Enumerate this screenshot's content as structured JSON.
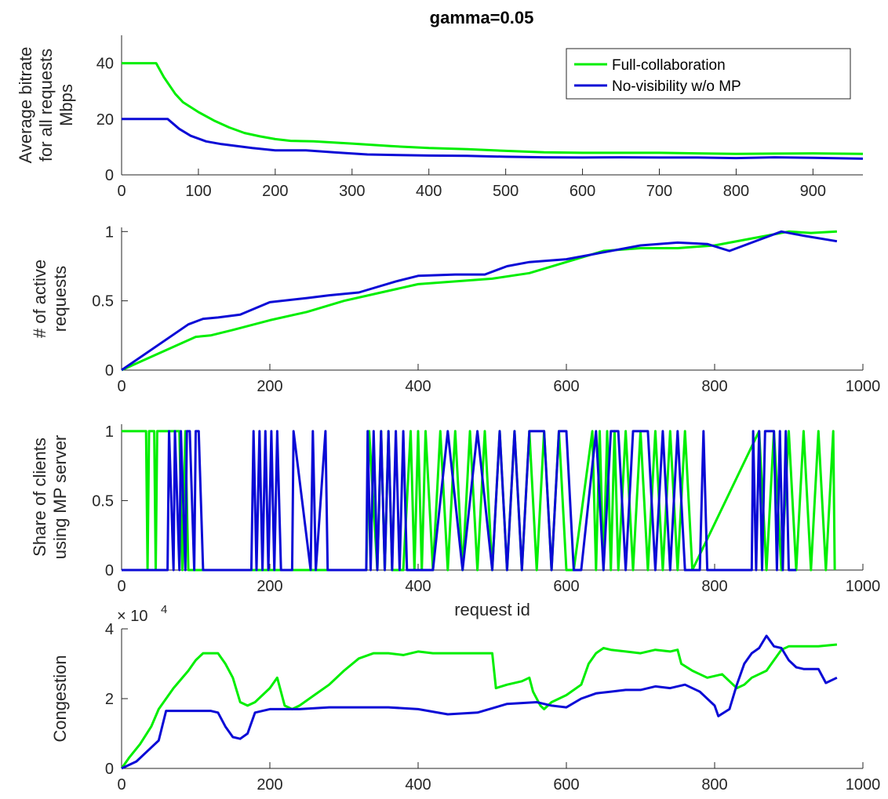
{
  "title": "gamma=0.05",
  "colors": {
    "full": "#00ee00",
    "novis": "#0a0ad6"
  },
  "chart_data": [
    {
      "type": "line",
      "ylabel": [
        "Average bitrate",
        "for all requests",
        "Mbps"
      ],
      "xlabel": "",
      "xlim": [
        0,
        965
      ],
      "ylim": [
        0,
        50
      ],
      "xticks": [
        0,
        100,
        200,
        300,
        400,
        500,
        600,
        700,
        800,
        900
      ],
      "yticks": [
        0,
        20,
        40
      ],
      "legend": {
        "placement": "top-right",
        "entries": [
          "Full-collaboration",
          "No-visibility w/o MP"
        ]
      },
      "series": [
        {
          "name": "Full-collaboration",
          "color": "#00ee00",
          "x": [
            0,
            45,
            55,
            70,
            80,
            100,
            120,
            140,
            160,
            180,
            200,
            220,
            250,
            300,
            350,
            400,
            450,
            500,
            550,
            600,
            650,
            700,
            750,
            800,
            850,
            900,
            965
          ],
          "y": [
            40,
            40,
            35,
            29,
            26,
            22.5,
            19.5,
            17,
            15,
            13.8,
            12.8,
            12.2,
            12,
            11.2,
            10.3,
            9.6,
            9.2,
            8.6,
            8.1,
            7.9,
            7.9,
            7.9,
            7.7,
            7.5,
            7.6,
            7.7,
            7.5
          ]
        },
        {
          "name": "No-visibility w/o MP",
          "color": "#0a0ad6",
          "x": [
            0,
            60,
            75,
            90,
            110,
            130,
            150,
            170,
            200,
            240,
            280,
            320,
            360,
            400,
            450,
            500,
            550,
            600,
            650,
            700,
            750,
            800,
            850,
            900,
            965
          ],
          "y": [
            20,
            20,
            16.5,
            14,
            12,
            11,
            10.3,
            9.6,
            8.8,
            8.8,
            8,
            7.3,
            7.1,
            6.9,
            6.8,
            6.5,
            6.3,
            6.2,
            6.3,
            6.2,
            6.2,
            6,
            6.3,
            6.1,
            5.8
          ]
        }
      ]
    },
    {
      "type": "line",
      "ylabel": [
        "# of active",
        "requests"
      ],
      "xlabel": "",
      "xlim": [
        0,
        1000
      ],
      "ylim": [
        0,
        1.03
      ],
      "xticks": [
        0,
        200,
        400,
        600,
        800,
        1000
      ],
      "yticks": [
        0,
        0.5,
        1
      ],
      "series": [
        {
          "name": "Full-collaboration",
          "color": "#00ee00",
          "x": [
            0,
            50,
            100,
            120,
            150,
            200,
            250,
            300,
            350,
            400,
            450,
            500,
            550,
            600,
            650,
            700,
            750,
            800,
            850,
            900,
            930,
            965
          ],
          "y": [
            0,
            0.12,
            0.24,
            0.25,
            0.29,
            0.36,
            0.42,
            0.5,
            0.56,
            0.62,
            0.64,
            0.66,
            0.7,
            0.78,
            0.86,
            0.88,
            0.88,
            0.9,
            0.95,
            1.0,
            0.99,
            1.0
          ]
        },
        {
          "name": "No-visibility w/o MP",
          "color": "#0a0ad6",
          "x": [
            0,
            90,
            110,
            130,
            160,
            200,
            250,
            280,
            320,
            370,
            400,
            450,
            490,
            520,
            550,
            600,
            650,
            700,
            750,
            790,
            820,
            860,
            890,
            920,
            965
          ],
          "y": [
            0,
            0.33,
            0.37,
            0.38,
            0.4,
            0.49,
            0.52,
            0.54,
            0.56,
            0.64,
            0.68,
            0.69,
            0.69,
            0.75,
            0.78,
            0.8,
            0.85,
            0.9,
            0.92,
            0.91,
            0.86,
            0.94,
            1.0,
            0.97,
            0.93
          ]
        }
      ]
    },
    {
      "type": "line",
      "ylabel": [
        "Share of clients",
        "using MP server"
      ],
      "xlabel": "request id",
      "xlim": [
        0,
        1000
      ],
      "ylim": [
        0,
        1.05
      ],
      "xticks": [
        0,
        200,
        400,
        600,
        800,
        1000
      ],
      "yticks": [
        0,
        0.5,
        1
      ],
      "series": [
        {
          "name": "Full-collaboration",
          "color": "#00ee00",
          "x": [
            0,
            33,
            35,
            37,
            44,
            46,
            48,
            78,
            82,
            86,
            90,
            94,
            330,
            334,
            345,
            350,
            355,
            360,
            365,
            380,
            390,
            395,
            400,
            405,
            410,
            420,
            430,
            440,
            450,
            460,
            470,
            480,
            490,
            500,
            510,
            520,
            530,
            540,
            550,
            560,
            570,
            580,
            590,
            600,
            610,
            635,
            640,
            645,
            650,
            655,
            660,
            665,
            670,
            680,
            690,
            700,
            710,
            720,
            730,
            740,
            750,
            760,
            770,
            860,
            870,
            880,
            890,
            900,
            910,
            920,
            930,
            940,
            950,
            960,
            962
          ],
          "y": [
            1,
            1,
            0,
            1,
            1,
            0,
            1,
            1,
            0,
            1,
            0,
            0,
            0,
            1,
            0,
            1,
            0,
            1,
            0,
            0,
            1,
            0,
            1,
            0,
            1,
            0,
            1,
            0,
            1,
            0,
            1,
            0,
            1,
            0,
            1,
            0,
            1,
            0,
            1,
            0,
            1,
            0,
            1,
            0,
            0,
            1,
            0,
            1,
            0,
            1,
            0,
            1,
            0,
            1,
            0,
            1,
            0,
            1,
            0,
            1,
            0,
            1,
            0,
            1,
            0,
            1,
            0,
            1,
            0,
            1,
            0,
            1,
            0,
            1,
            0
          ]
        },
        {
          "name": "No-visibility w/o MP",
          "color": "#0a0ad6",
          "x": [
            0,
            62,
            64,
            70,
            72,
            78,
            80,
            86,
            88,
            92,
            98,
            100,
            104,
            110,
            120,
            175,
            178,
            182,
            186,
            190,
            194,
            198,
            202,
            206,
            210,
            215,
            230,
            232,
            255,
            258,
            262,
            275,
            278,
            290,
            330,
            332,
            336,
            340,
            345,
            350,
            355,
            360,
            365,
            370,
            375,
            380,
            385,
            395,
            420,
            440,
            460,
            480,
            500,
            510,
            520,
            530,
            540,
            550,
            560,
            570,
            580,
            590,
            600,
            610,
            620,
            640,
            650,
            660,
            670,
            680,
            690,
            700,
            710,
            720,
            730,
            740,
            750,
            760,
            780,
            785,
            790,
            850,
            852,
            856,
            860,
            864,
            868,
            872,
            876,
            880,
            884,
            888,
            892,
            896,
            900,
            910
          ],
          "y": [
            0,
            0,
            1,
            0,
            1,
            0,
            1,
            0,
            1,
            1,
            0,
            1,
            1,
            0,
            0,
            0,
            1,
            0,
            1,
            0,
            1,
            0,
            1,
            0,
            1,
            0,
            0,
            1,
            0,
            1,
            0,
            1,
            0,
            0,
            0,
            1,
            0,
            1,
            0,
            1,
            0,
            1,
            0,
            1,
            0,
            1,
            0,
            0,
            0,
            1,
            0,
            1,
            0,
            1,
            0,
            1,
            0,
            1,
            1,
            1,
            0,
            1,
            1,
            0,
            0,
            1,
            0,
            1,
            1,
            0,
            1,
            1,
            1,
            0,
            1,
            0,
            1,
            0,
            0,
            1,
            0,
            0,
            1,
            0,
            1,
            0,
            1,
            1,
            1,
            1,
            0,
            1,
            0,
            1,
            0,
            0
          ]
        }
      ]
    },
    {
      "type": "line",
      "ylabel": [
        "Congestion"
      ],
      "xlabel": "",
      "exponent_label": "× 10",
      "exponent_power": "4",
      "xlim": [
        0,
        1000
      ],
      "ylim": [
        0,
        40000
      ],
      "xticks": [
        0,
        200,
        400,
        600,
        800,
        1000
      ],
      "yticks": [
        0,
        2,
        4
      ],
      "series": [
        {
          "name": "Full-collaboration",
          "color": "#00ee00",
          "x": [
            0,
            10,
            25,
            40,
            50,
            70,
            90,
            100,
            110,
            130,
            140,
            150,
            160,
            170,
            180,
            190,
            200,
            210,
            220,
            230,
            240,
            260,
            280,
            300,
            320,
            340,
            360,
            380,
            400,
            420,
            450,
            480,
            500,
            505,
            520,
            540,
            550,
            555,
            565,
            570,
            580,
            600,
            620,
            630,
            640,
            650,
            660,
            680,
            700,
            720,
            740,
            750,
            755,
            770,
            790,
            810,
            820,
            830,
            840,
            850,
            870,
            880,
            890,
            900,
            920,
            940,
            965
          ],
          "y": [
            0,
            3000,
            7000,
            12000,
            17000,
            23000,
            28000,
            31000,
            33000,
            33000,
            30000,
            26000,
            19000,
            18000,
            19000,
            21000,
            23000,
            26000,
            18000,
            17000,
            18000,
            21000,
            24000,
            28000,
            31500,
            33000,
            33000,
            32500,
            33500,
            33000,
            33000,
            33000,
            33000,
            23000,
            24000,
            25000,
            26000,
            22000,
            18000,
            17000,
            19000,
            21000,
            24000,
            30000,
            33000,
            34500,
            34000,
            33500,
            33000,
            34000,
            33500,
            34000,
            30000,
            28000,
            26000,
            27000,
            25000,
            23000,
            24000,
            26000,
            28000,
            31000,
            34000,
            35000,
            35000,
            35000,
            35500
          ]
        },
        {
          "name": "No-visibility w/o MP",
          "color": "#0a0ad6",
          "x": [
            0,
            20,
            40,
            50,
            60,
            80,
            120,
            130,
            140,
            150,
            160,
            170,
            180,
            200,
            240,
            280,
            320,
            360,
            400,
            440,
            480,
            520,
            560,
            580,
            600,
            620,
            640,
            660,
            680,
            700,
            720,
            740,
            760,
            780,
            800,
            805,
            820,
            830,
            840,
            850,
            860,
            870,
            880,
            890,
            900,
            910,
            920,
            940,
            950,
            965
          ],
          "y": [
            0,
            2000,
            6000,
            8000,
            16500,
            16500,
            16500,
            16000,
            12000,
            9000,
            8500,
            10000,
            16000,
            17000,
            17000,
            17500,
            17500,
            17500,
            17000,
            15500,
            16000,
            18500,
            19000,
            18000,
            17500,
            20000,
            21500,
            22000,
            22500,
            22500,
            23500,
            23000,
            24000,
            22000,
            18000,
            15000,
            17000,
            24000,
            30000,
            33000,
            34500,
            38000,
            35000,
            34500,
            31000,
            29000,
            28500,
            28500,
            24500,
            26000
          ]
        }
      ]
    }
  ]
}
